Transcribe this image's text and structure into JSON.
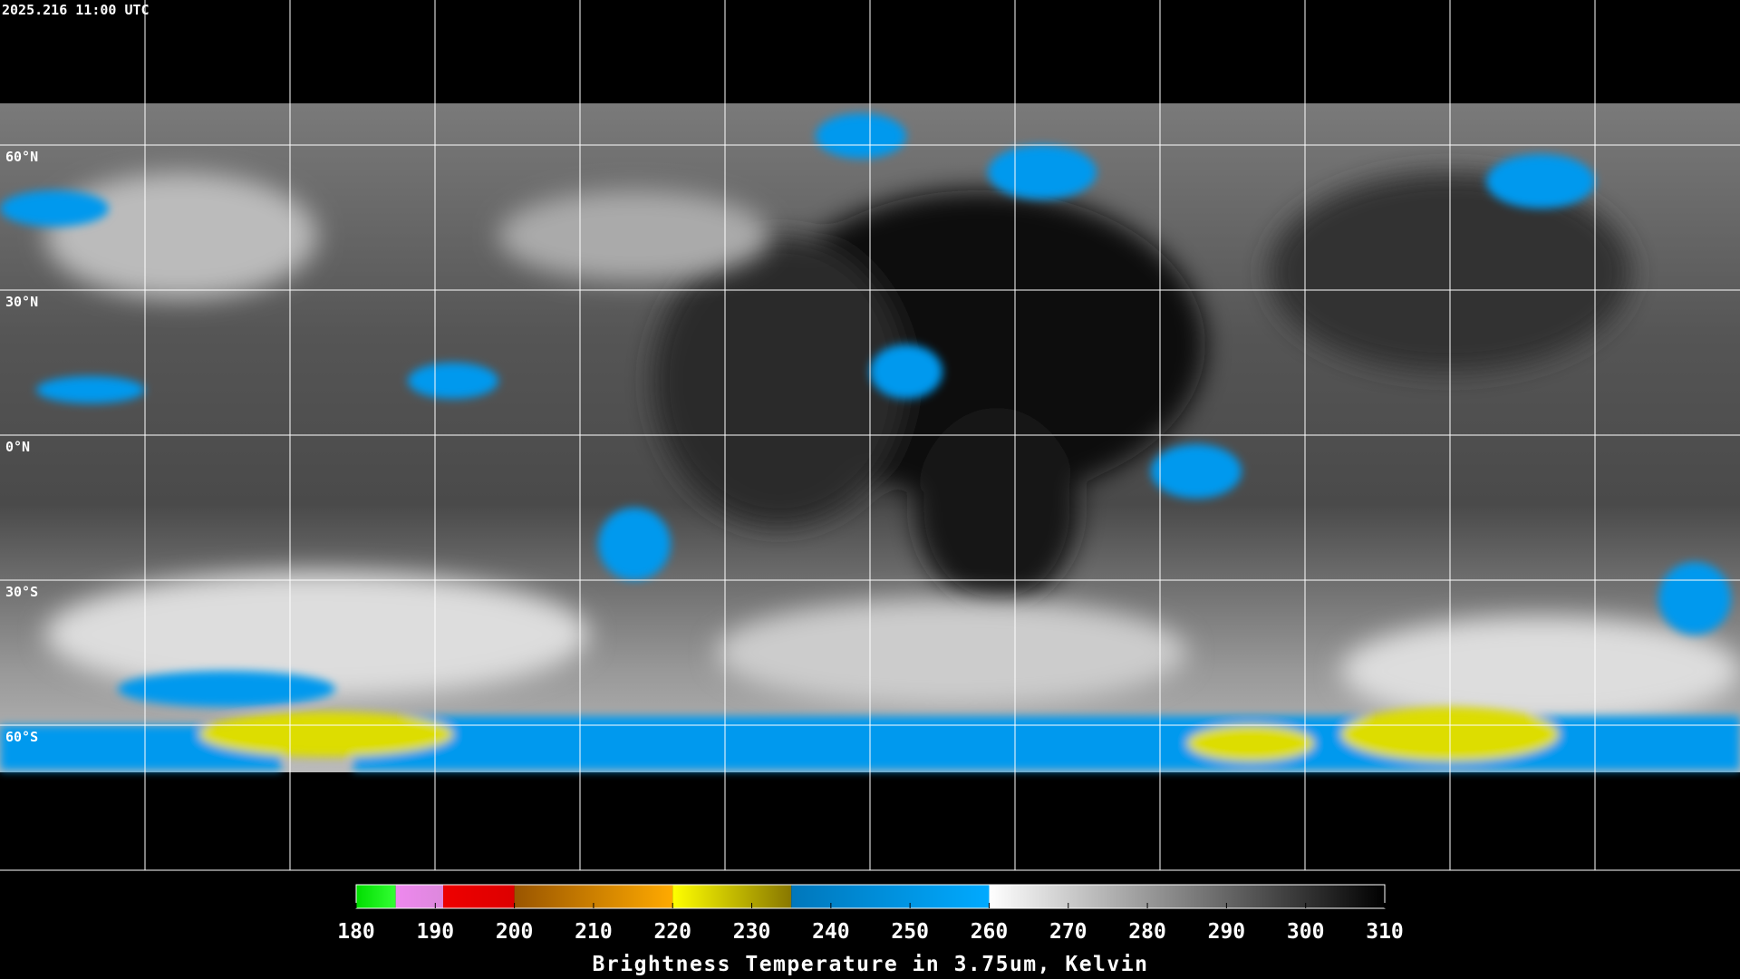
{
  "timestamp": "2025.216 11:00 UTC",
  "latitude_labels": [
    "60°N",
    "30°N",
    "0°N",
    "30°S",
    "60°S"
  ],
  "colorbar": {
    "title": "Brightness Temperature in 3.75um, Kelvin",
    "range": [
      180,
      310
    ],
    "ticks": [
      180,
      190,
      200,
      210,
      220,
      230,
      240,
      250,
      260,
      270,
      280,
      290,
      300,
      310
    ],
    "segments": [
      {
        "from": 180,
        "to": 185,
        "colors": [
          "#00dd00",
          "#33ff33"
        ]
      },
      {
        "from": 185,
        "to": 191,
        "colors": [
          "#ee88ee",
          "#dd88dd"
        ]
      },
      {
        "from": 191,
        "to": 200,
        "colors": [
          "#ee0000",
          "#dd0000"
        ]
      },
      {
        "from": 200,
        "to": 220,
        "colors": [
          "#995500",
          "#ffaa00"
        ]
      },
      {
        "from": 220,
        "to": 235,
        "colors": [
          "#ffff00",
          "#887700"
        ]
      },
      {
        "from": 235,
        "to": 260,
        "colors": [
          "#0077bb",
          "#00aaff"
        ]
      },
      {
        "from": 260,
        "to": 310,
        "colors": [
          "#ffffff",
          "#000000"
        ]
      }
    ]
  }
}
